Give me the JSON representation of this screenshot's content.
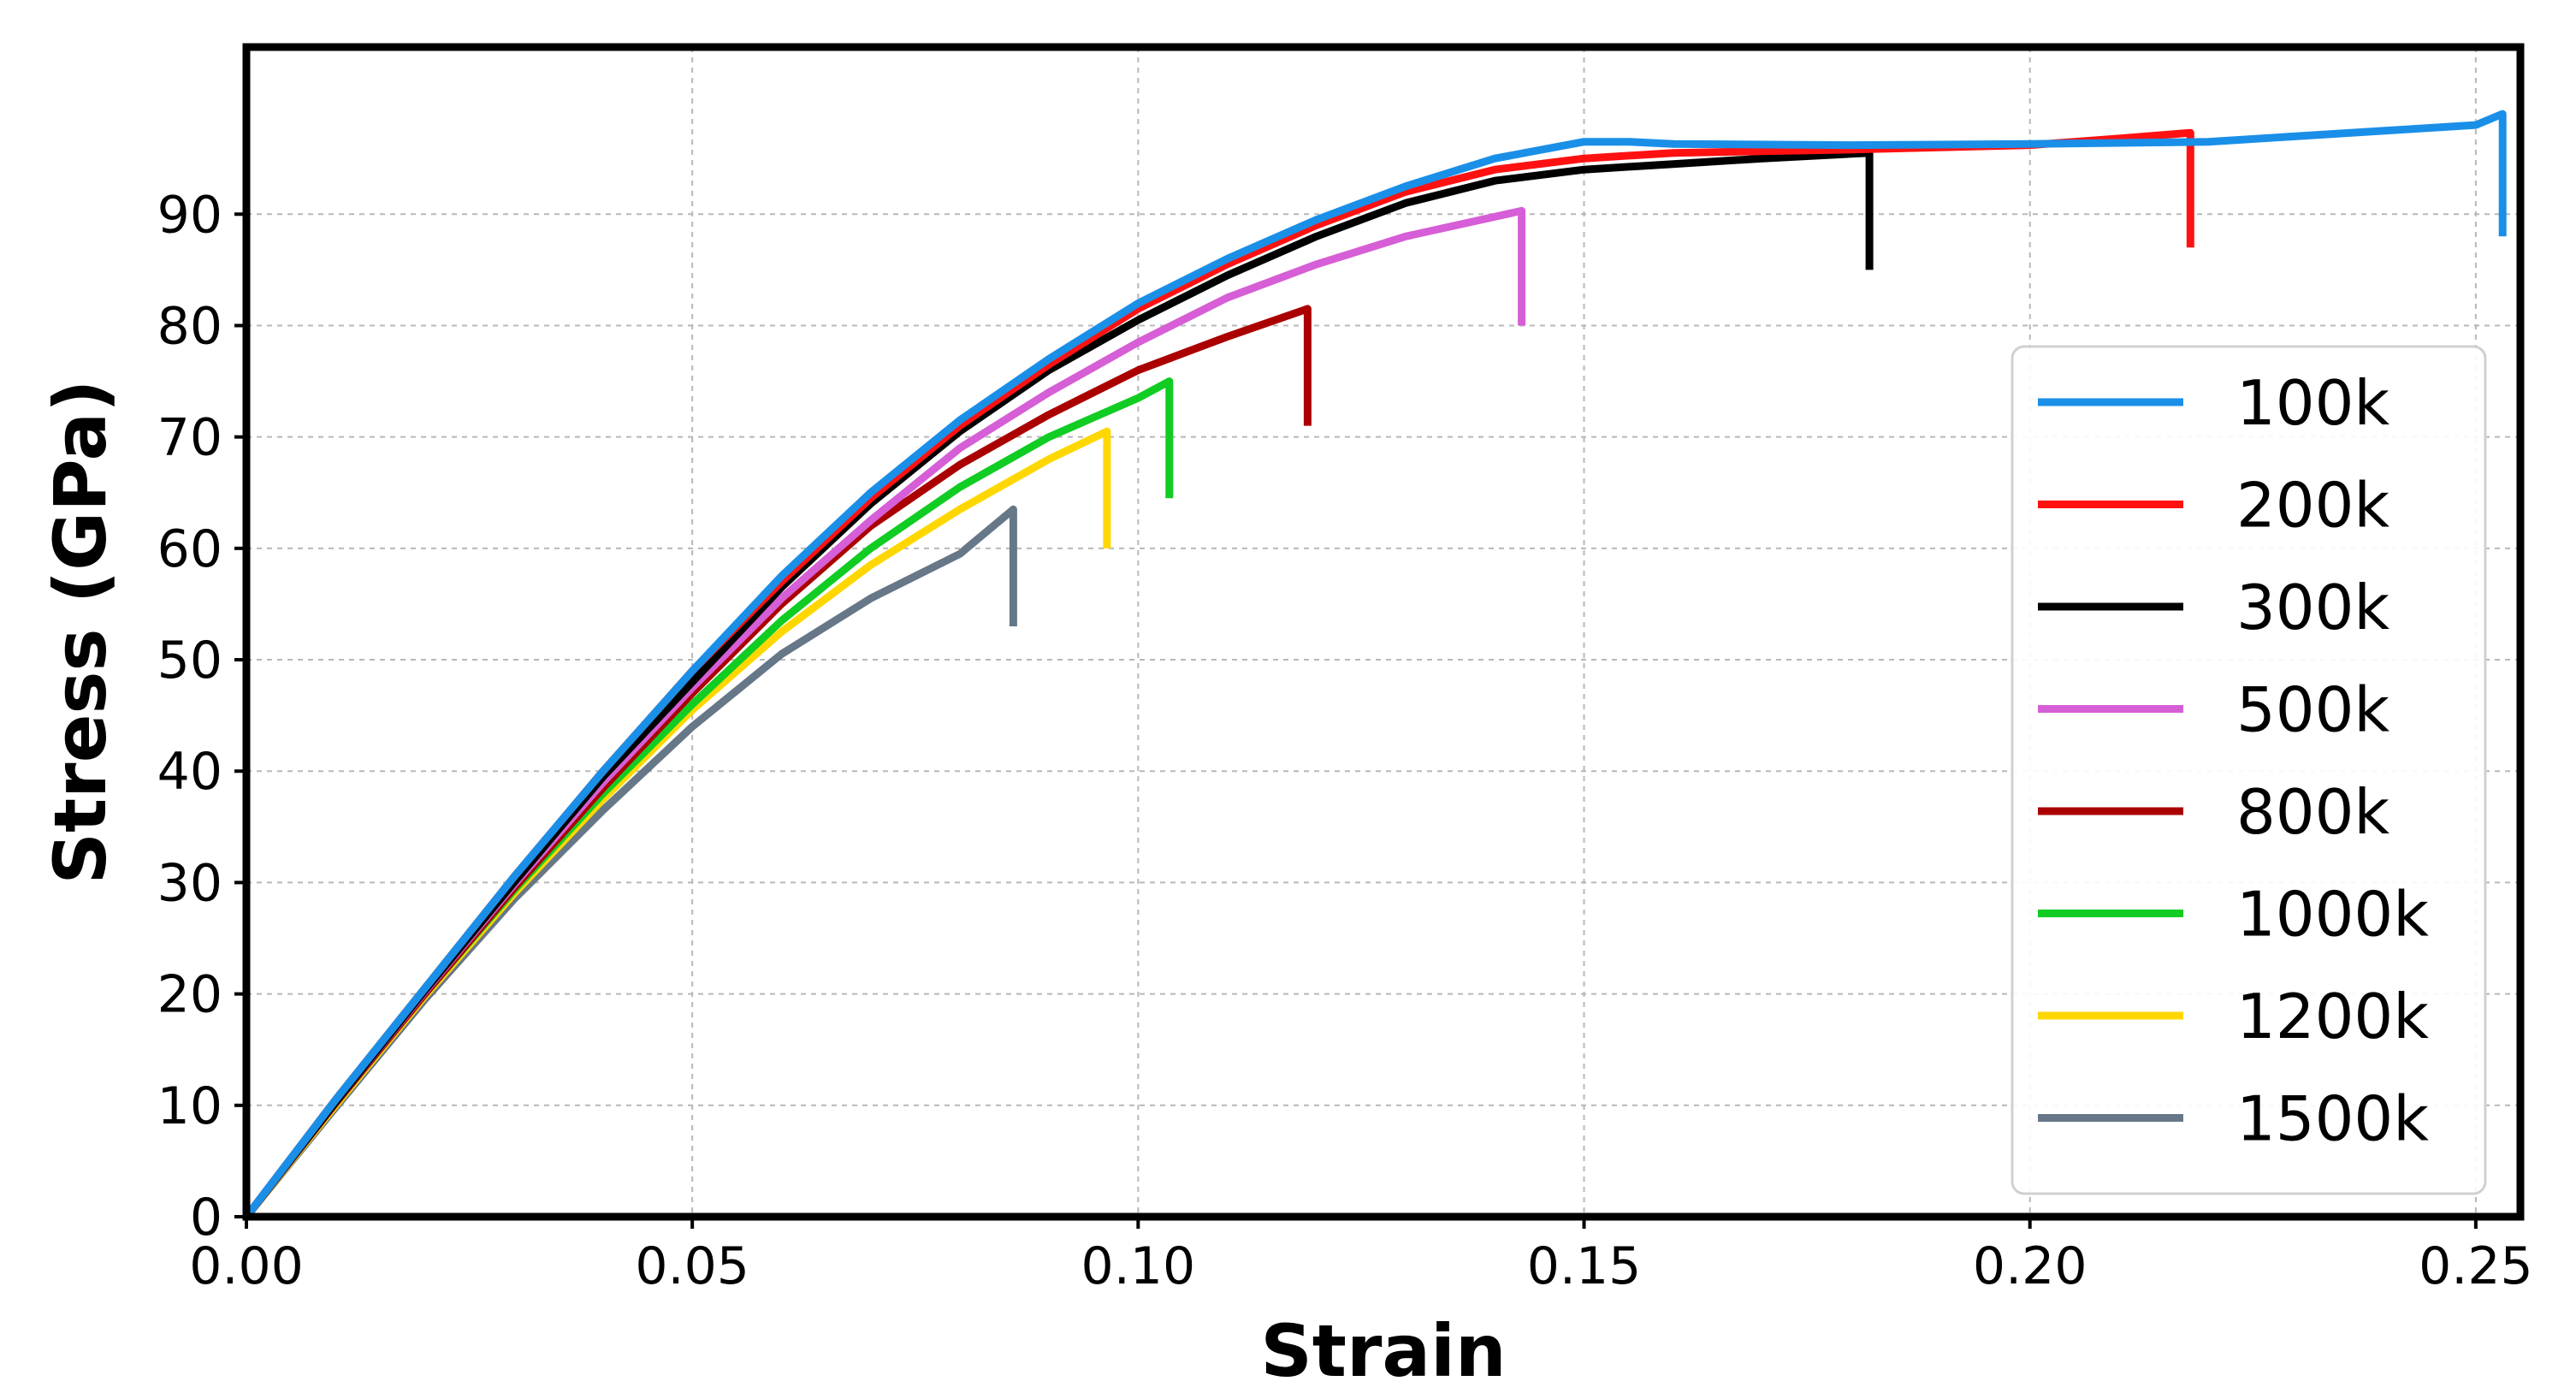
{
  "chart_data": {
    "type": "line",
    "title": "",
    "xlabel": "Strain",
    "ylabel": "Stress (GPa)",
    "xlim": [
      0,
      0.255
    ],
    "ylim": [
      0,
      105
    ],
    "x_ticks": [
      0.0,
      0.05,
      0.1,
      0.15,
      0.2,
      0.25
    ],
    "x_tick_labels": [
      "0.00",
      "0.05",
      "0.10",
      "0.15",
      "0.20",
      "0.25"
    ],
    "y_ticks": [
      0,
      10,
      20,
      30,
      40,
      50,
      60,
      70,
      80,
      90
    ],
    "y_tick_labels": [
      "0",
      "10",
      "20",
      "30",
      "40",
      "50",
      "60",
      "70",
      "80",
      "90"
    ],
    "grid": true,
    "legend_position": "center-right",
    "series": [
      {
        "name": "100k",
        "color": "#1a8fe8",
        "x": [
          0,
          0.01,
          0.02,
          0.03,
          0.04,
          0.05,
          0.06,
          0.07,
          0.08,
          0.09,
          0.1,
          0.11,
          0.12,
          0.13,
          0.14,
          0.15,
          0.155,
          0.16,
          0.18,
          0.2,
          0.22,
          0.24,
          0.25,
          0.253,
          0.253
        ],
        "y": [
          0,
          10.5,
          20.5,
          30.5,
          40,
          49,
          57.5,
          65,
          71.5,
          77,
          82,
          86,
          89.5,
          92.5,
          95,
          96.5,
          96.5,
          96.3,
          96.2,
          96.3,
          96.5,
          97.5,
          98,
          99,
          88
        ]
      },
      {
        "name": "200k",
        "color": "#ff1111",
        "x": [
          0,
          0.01,
          0.02,
          0.03,
          0.04,
          0.05,
          0.06,
          0.07,
          0.08,
          0.09,
          0.1,
          0.11,
          0.12,
          0.13,
          0.14,
          0.15,
          0.16,
          0.18,
          0.2,
          0.21,
          0.218,
          0.218
        ],
        "y": [
          0,
          10.5,
          20.5,
          30.5,
          40,
          49,
          57,
          64.5,
          71,
          76.5,
          81.5,
          85.5,
          89,
          92,
          94,
          95,
          95.5,
          95.8,
          96.2,
          96.8,
          97.3,
          87
        ]
      },
      {
        "name": "300k",
        "color": "#000000",
        "x": [
          0,
          0.01,
          0.02,
          0.03,
          0.04,
          0.05,
          0.06,
          0.07,
          0.08,
          0.09,
          0.1,
          0.11,
          0.12,
          0.13,
          0.14,
          0.15,
          0.16,
          0.17,
          0.182,
          0.182
        ],
        "y": [
          0,
          10.3,
          20.3,
          30,
          39.5,
          48,
          56.5,
          64,
          70.5,
          76,
          80.5,
          84.5,
          88,
          91,
          93,
          94,
          94.5,
          95,
          95.5,
          85
        ]
      },
      {
        "name": "500k",
        "color": "#d65ed6",
        "x": [
          0,
          0.01,
          0.02,
          0.03,
          0.04,
          0.05,
          0.06,
          0.07,
          0.08,
          0.09,
          0.1,
          0.11,
          0.12,
          0.13,
          0.143,
          0.143
        ],
        "y": [
          0,
          10.3,
          20.2,
          29.8,
          39,
          47.5,
          55.5,
          62.5,
          69,
          74,
          78.5,
          82.5,
          85.5,
          88,
          90.3,
          80
        ]
      },
      {
        "name": "800k",
        "color": "#aa0000",
        "x": [
          0,
          0.01,
          0.02,
          0.03,
          0.04,
          0.05,
          0.06,
          0.07,
          0.08,
          0.09,
          0.1,
          0.11,
          0.119,
          0.119
        ],
        "y": [
          0,
          10.2,
          20,
          29.5,
          38.5,
          47,
          55,
          62,
          67.5,
          72,
          76,
          79,
          81.5,
          71
        ]
      },
      {
        "name": "1000k",
        "color": "#11cc22",
        "x": [
          0,
          0.01,
          0.02,
          0.03,
          0.04,
          0.05,
          0.06,
          0.07,
          0.08,
          0.09,
          0.1,
          0.1035,
          0.1035
        ],
        "y": [
          0,
          10.2,
          20,
          29.3,
          38,
          46,
          53.5,
          60,
          65.5,
          70,
          73.5,
          75,
          64.5
        ]
      },
      {
        "name": "1200k",
        "color": "#ffd700",
        "x": [
          0,
          0.01,
          0.02,
          0.03,
          0.04,
          0.05,
          0.06,
          0.07,
          0.08,
          0.09,
          0.0965,
          0.0965
        ],
        "y": [
          0,
          10,
          19.8,
          29,
          37.5,
          45.5,
          52.5,
          58.5,
          63.5,
          68,
          70.5,
          60
        ]
      },
      {
        "name": "1500k",
        "color": "#667788",
        "x": [
          0,
          0.01,
          0.02,
          0.03,
          0.04,
          0.05,
          0.06,
          0.07,
          0.08,
          0.086,
          0.086
        ],
        "y": [
          0,
          9.8,
          19.5,
          28.5,
          36.5,
          44,
          50.5,
          55.5,
          59.5,
          63.5,
          53
        ]
      }
    ]
  }
}
